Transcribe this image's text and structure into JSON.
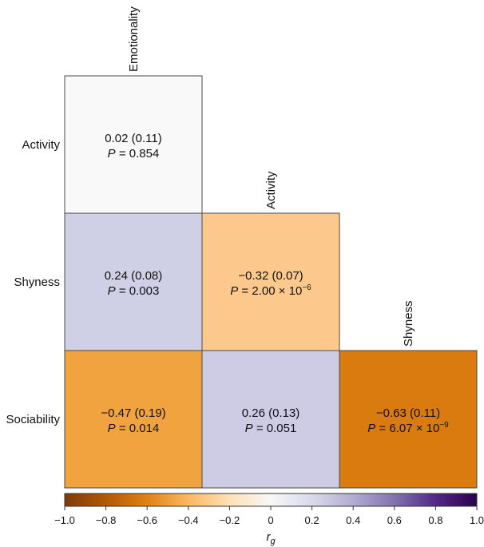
{
  "chart_data": {
    "type": "heatmap",
    "rows": [
      "Activity",
      "Shyness",
      "Sociability"
    ],
    "columns": [
      "Emotionality",
      "Activity",
      "Shyness"
    ],
    "cells": [
      {
        "row": 0,
        "col": 0,
        "rg": 0.02,
        "se": "0.11",
        "value_text": "0.02 (0.11)",
        "p_label": "P",
        "p_text": " = 0.854",
        "p_mantissa": "",
        "p_exponent": "",
        "color": "#f9f9f9"
      },
      {
        "row": 1,
        "col": 0,
        "rg": 0.24,
        "se": "0.08",
        "value_text": "0.24 (0.08)",
        "p_label": "P",
        "p_text": " = 0.003",
        "p_mantissa": "",
        "p_exponent": "",
        "color": "#cfcfe5"
      },
      {
        "row": 1,
        "col": 1,
        "rg": -0.32,
        "se": "0.07",
        "value_text": "−0.32 (0.07)",
        "p_label": "P",
        "p_text": "",
        "p_mantissa": " = 2.00 × 10",
        "p_exponent": "−6",
        "color": "#fdc88b"
      },
      {
        "row": 2,
        "col": 0,
        "rg": -0.47,
        "se": "0.19",
        "value_text": "−0.47 (0.19)",
        "p_label": "P",
        "p_text": " = 0.014",
        "p_mantissa": "",
        "p_exponent": "",
        "color": "#f0a33f"
      },
      {
        "row": 2,
        "col": 1,
        "rg": 0.26,
        "se": "0.13",
        "value_text": "0.26 (0.13)",
        "p_label": "P",
        "p_text": " = 0.051",
        "p_mantissa": "",
        "p_exponent": "",
        "color": "#cdcce4"
      },
      {
        "row": 2,
        "col": 2,
        "rg": -0.63,
        "se": "0.11",
        "value_text": "−0.63 (0.11)",
        "p_label": "P",
        "p_text": "",
        "p_mantissa": " = 6.07 × 10",
        "p_exponent": "−9",
        "color": "#da7b10"
      }
    ],
    "colorbar": {
      "range": [
        -1.0,
        1.0
      ],
      "ticks": [
        -1.0,
        -0.8,
        -0.6,
        -0.4,
        -0.2,
        0,
        0.2,
        0.4,
        0.6,
        0.8,
        1.0
      ],
      "tick_labels": [
        "−1.0",
        "−0.8",
        "−0.6",
        "−0.4",
        "−0.2",
        "0",
        "0.2",
        "0.4",
        "0.6",
        "0.8",
        "1.0"
      ],
      "stops": [
        {
          "value": -1.0,
          "color": "#7f3b08"
        },
        {
          "value": -0.8,
          "color": "#b35806"
        },
        {
          "value": -0.6,
          "color": "#e08214"
        },
        {
          "value": -0.4,
          "color": "#fdb863"
        },
        {
          "value": -0.2,
          "color": "#fee0b6"
        },
        {
          "value": 0,
          "color": "#f7f7f7"
        },
        {
          "value": 0.2,
          "color": "#d8daeb"
        },
        {
          "value": 0.4,
          "color": "#b2abd2"
        },
        {
          "value": 0.6,
          "color": "#8073ac"
        },
        {
          "value": 0.8,
          "color": "#542788"
        },
        {
          "value": 1.0,
          "color": "#2d004b"
        }
      ],
      "label_main": "r",
      "label_sub": "g"
    }
  }
}
